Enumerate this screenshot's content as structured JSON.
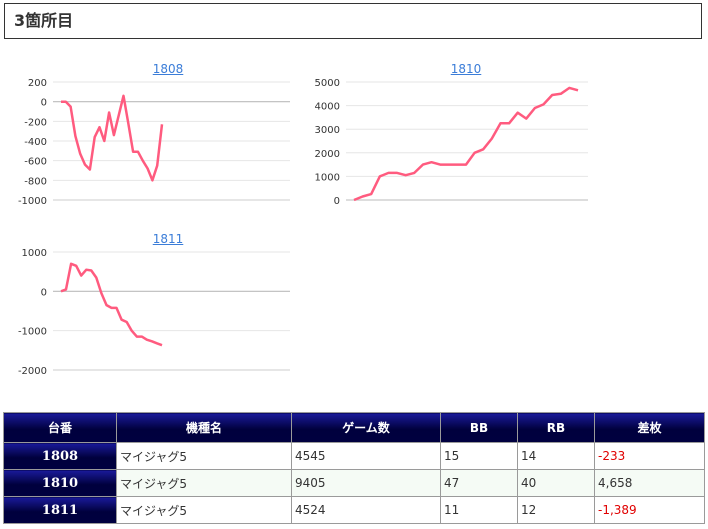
{
  "page": {
    "title": "3箇所目"
  },
  "colors": {
    "line": "#ff5b7f",
    "header_bg": "#000050",
    "negative": "#e00000",
    "link": "#3b7dd8"
  },
  "chart_data": [
    {
      "type": "line",
      "title": "1808",
      "yticks": [
        "200",
        "0",
        "-200",
        "-400",
        "-600",
        "-800",
        "-1000"
      ],
      "ylim": [
        -1000,
        200
      ],
      "series": [
        {
          "values": [
            0,
            0,
            -50,
            -350,
            -530,
            -640,
            -690,
            -360,
            -260,
            -400,
            -110,
            -340,
            -140,
            60,
            -220,
            -510,
            -510,
            -600,
            -680,
            -800,
            -650,
            -230
          ]
        }
      ]
    },
    {
      "type": "line",
      "title": "1810",
      "yticks": [
        "5000",
        "4000",
        "3000",
        "2000",
        "1000",
        "0"
      ],
      "ylim": [
        0,
        5000
      ],
      "series": [
        {
          "values": [
            0,
            150,
            250,
            1000,
            1150,
            1150,
            1050,
            1150,
            1500,
            1600,
            1500,
            1500,
            1500,
            1500,
            2000,
            2150,
            2600,
            3250,
            3250,
            3700,
            3450,
            3900,
            4050,
            4450,
            4500,
            4750,
            4650
          ]
        }
      ]
    },
    {
      "type": "line",
      "title": "1811",
      "yticks": [
        "1000",
        "0",
        "-1000",
        "-2000"
      ],
      "ylim": [
        -2000,
        1000
      ],
      "series": [
        {
          "values": [
            0,
            50,
            700,
            650,
            400,
            550,
            530,
            350,
            -50,
            -350,
            -420,
            -420,
            -720,
            -780,
            -1000,
            -1150,
            -1150,
            -1230,
            -1270,
            -1320,
            -1370
          ]
        }
      ]
    }
  ],
  "table": {
    "headers": [
      "台番",
      "機種名",
      "ゲーム数",
      "BB",
      "RB",
      "差枚"
    ],
    "rows": [
      [
        "1808",
        "マイジャグ5",
        "4545",
        "15",
        "14",
        "-233"
      ],
      [
        "1810",
        "マイジャグ5",
        "9405",
        "47",
        "40",
        "4,658"
      ],
      [
        "1811",
        "マイジャグ5",
        "4524",
        "11",
        "12",
        "-1,389"
      ]
    ]
  }
}
